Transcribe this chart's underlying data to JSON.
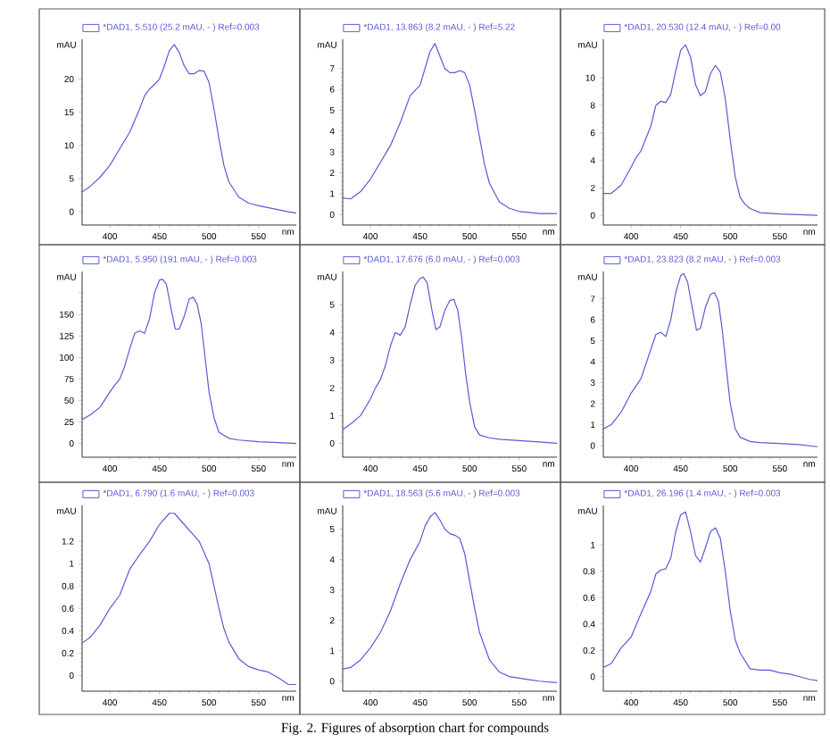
{
  "chart_data": [
    {
      "type": "line",
      "xlabel": "nm",
      "ylabel": "mAU",
      "legend": "top left",
      "xlim": [
        372,
        588
      ],
      "ylim": [
        -2,
        26
      ],
      "xticks": [
        400,
        450,
        500,
        550
      ],
      "yticks": [
        0,
        5,
        10,
        15,
        20
      ],
      "x": [
        372,
        380,
        390,
        400,
        410,
        420,
        430,
        435,
        440,
        445,
        450,
        455,
        460,
        465,
        470,
        475,
        480,
        485,
        490,
        495,
        500,
        505,
        510,
        515,
        520,
        530,
        540,
        550,
        560,
        570,
        580,
        588
      ],
      "series": [
        {
          "name": "*DAD1, 5.510 (25.2 mAU, - ) Ref=0.003",
          "color": "#5a5ad6",
          "values": [
            3.0,
            3.8,
            5.2,
            7.0,
            9.5,
            12.0,
            15.5,
            17.5,
            18.5,
            19.2,
            20.0,
            22.0,
            24.3,
            25.2,
            24.0,
            22.0,
            20.8,
            20.8,
            21.3,
            21.2,
            19.5,
            15.5,
            11,
            7,
            4.5,
            2.2,
            1.3,
            0.9,
            0.6,
            0.3,
            0.0,
            -0.2
          ]
        }
      ]
    },
    {
      "type": "line",
      "xlabel": "nm",
      "ylabel": "mAU",
      "legend": "top left",
      "xlim": [
        372,
        588
      ],
      "ylim": [
        -0.5,
        8.4
      ],
      "xticks": [
        400,
        450,
        500,
        550
      ],
      "yticks": [
        0,
        1,
        2,
        3,
        4,
        5,
        6,
        7
      ],
      "x": [
        372,
        380,
        390,
        400,
        410,
        420,
        430,
        440,
        450,
        455,
        460,
        465,
        470,
        475,
        480,
        485,
        490,
        495,
        500,
        505,
        510,
        515,
        520,
        530,
        540,
        550,
        560,
        570,
        588
      ],
      "series": [
        {
          "name": "*DAD1, 13.863 (8.2 mAU, - ) Ref=5.22",
          "color": "#5a5ad6",
          "values": [
            0.8,
            0.75,
            1.1,
            1.7,
            2.5,
            3.3,
            4.4,
            5.7,
            6.2,
            7.0,
            7.8,
            8.2,
            7.6,
            7.0,
            6.8,
            6.8,
            6.9,
            6.8,
            6.2,
            5.0,
            3.7,
            2.4,
            1.5,
            0.6,
            0.3,
            0.15,
            0.1,
            0.05,
            0.05
          ]
        }
      ]
    },
    {
      "type": "line",
      "xlabel": "nm",
      "ylabel": "mAU",
      "legend": "top left",
      "xlim": [
        372,
        588
      ],
      "ylim": [
        -0.7,
        12.8
      ],
      "xticks": [
        400,
        450,
        500,
        550
      ],
      "yticks": [
        0,
        2,
        4,
        6,
        8,
        10
      ],
      "x": [
        372,
        380,
        390,
        400,
        405,
        410,
        420,
        425,
        430,
        435,
        440,
        445,
        450,
        455,
        460,
        465,
        470,
        475,
        480,
        485,
        490,
        495,
        500,
        505,
        510,
        515,
        520,
        530,
        550,
        570,
        588
      ],
      "series": [
        {
          "name": "*DAD1, 20.530 (12.4 mAU, - ) Ref=0.00",
          "color": "#5a5ad6",
          "values": [
            1.6,
            1.6,
            2.2,
            3.5,
            4.2,
            4.7,
            6.5,
            8.0,
            8.3,
            8.2,
            8.8,
            10.5,
            12.0,
            12.4,
            11.5,
            9.5,
            8.7,
            9.0,
            10.3,
            10.9,
            10.4,
            8.5,
            5.5,
            2.8,
            1.3,
            0.8,
            0.5,
            0.2,
            0.1,
            0.05,
            0.0
          ]
        }
      ]
    },
    {
      "type": "line",
      "xlabel": "nm",
      "ylabel": "mAU",
      "legend": "top left",
      "xlim": [
        372,
        588
      ],
      "ylim": [
        -16,
        200
      ],
      "xticks": [
        400,
        450,
        500,
        550
      ],
      "yticks": [
        0,
        25,
        50,
        75,
        100,
        125,
        150,
        {
          "value": 175,
          "label": null
        }
      ],
      "x": [
        372,
        380,
        390,
        400,
        405,
        410,
        415,
        420,
        425,
        430,
        435,
        440,
        445,
        450,
        453,
        457,
        462,
        466,
        470,
        475,
        480,
        484,
        488,
        492,
        496,
        500,
        505,
        510,
        520,
        530,
        550,
        570,
        588
      ],
      "series": [
        {
          "name": "*DAD1, 5.950 (191 mAU, - ) Ref=0.003",
          "color": "#5a5ad6",
          "values": [
            28,
            33,
            42,
            60,
            68,
            75,
            90,
            110,
            128,
            131,
            128,
            145,
            175,
            190,
            191,
            185,
            155,
            133,
            133,
            148,
            168,
            170,
            162,
            140,
            100,
            60,
            30,
            13,
            6,
            4,
            2,
            1,
            0
          ]
        }
      ]
    },
    {
      "type": "line",
      "xlabel": "nm",
      "ylabel": "mAU",
      "legend": "top left",
      "xlim": [
        372,
        588
      ],
      "ylim": [
        -0.5,
        6.2
      ],
      "xticks": [
        400,
        450,
        500,
        550
      ],
      "yticks": [
        0,
        1,
        2,
        3,
        4,
        5
      ],
      "x": [
        372,
        380,
        390,
        400,
        405,
        410,
        415,
        420,
        425,
        430,
        435,
        440,
        445,
        450,
        453,
        457,
        462,
        466,
        470,
        475,
        480,
        484,
        488,
        492,
        496,
        500,
        505,
        510,
        520,
        530,
        550,
        570,
        588
      ],
      "series": [
        {
          "name": "*DAD1, 17.676 (6.0 mAU, - ) Ref=0.003",
          "color": "#5a5ad6",
          "values": [
            0.5,
            0.7,
            1.0,
            1.6,
            2.0,
            2.3,
            2.8,
            3.5,
            4.0,
            3.9,
            4.2,
            5.0,
            5.7,
            5.95,
            6.0,
            5.8,
            4.8,
            4.1,
            4.2,
            4.8,
            5.15,
            5.2,
            4.8,
            3.8,
            2.5,
            1.5,
            0.6,
            0.3,
            0.2,
            0.15,
            0.1,
            0.05,
            0.0
          ]
        }
      ]
    },
    {
      "type": "line",
      "xlabel": "nm",
      "ylabel": "mAU",
      "legend": "top left",
      "xlim": [
        372,
        588
      ],
      "ylim": [
        -0.55,
        8.3
      ],
      "xticks": [
        400,
        450,
        500,
        550
      ],
      "yticks": [
        0,
        1,
        2,
        3,
        4,
        5,
        6,
        7
      ],
      "x": [
        372,
        380,
        390,
        400,
        410,
        420,
        425,
        430,
        435,
        440,
        445,
        450,
        453,
        457,
        462,
        466,
        470,
        475,
        480,
        484,
        488,
        492,
        496,
        500,
        505,
        510,
        520,
        530,
        550,
        570,
        588
      ],
      "series": [
        {
          "name": "*DAD1, 23.823 (8.2 mAU, - ) Ref=0.003",
          "color": "#5a5ad6",
          "values": [
            0.8,
            1.0,
            1.6,
            2.5,
            3.2,
            4.6,
            5.3,
            5.4,
            5.2,
            6.0,
            7.3,
            8.1,
            8.2,
            7.8,
            6.5,
            5.5,
            5.6,
            6.6,
            7.2,
            7.3,
            6.9,
            5.5,
            3.7,
            2.0,
            0.8,
            0.4,
            0.2,
            0.15,
            0.1,
            0.05,
            -0.05
          ]
        }
      ]
    },
    {
      "type": "line",
      "xlabel": "nm",
      "ylabel": "mAU",
      "legend": "top left",
      "xlim": [
        372,
        588
      ],
      "ylim": [
        -0.14,
        1.52
      ],
      "xticks": [
        400,
        450,
        500,
        550
      ],
      "yticks": [
        0,
        0.2,
        0.4,
        0.6,
        0.8,
        1,
        1.2
      ],
      "x": [
        372,
        380,
        390,
        400,
        410,
        420,
        430,
        440,
        450,
        460,
        465,
        470,
        480,
        490,
        500,
        505,
        510,
        515,
        520,
        530,
        540,
        550,
        560,
        570,
        580,
        588
      ],
      "series": [
        {
          "name": "*DAD1, 6.790 (1.6 mAU, - ) Ref=0.003",
          "color": "#5a5ad6",
          "values": [
            0.29,
            0.34,
            0.45,
            0.6,
            0.72,
            0.95,
            1.08,
            1.2,
            1.35,
            1.45,
            1.45,
            1.4,
            1.3,
            1.2,
            1.0,
            0.8,
            0.6,
            0.42,
            0.3,
            0.15,
            0.08,
            0.05,
            0.03,
            -0.02,
            -0.08,
            -0.08
          ]
        }
      ]
    },
    {
      "type": "line",
      "xlabel": "nm",
      "ylabel": "mAU",
      "legend": "top left",
      "xlim": [
        372,
        588
      ],
      "ylim": [
        -0.33,
        5.78
      ],
      "xticks": [
        400,
        450,
        500,
        550
      ],
      "yticks": [
        0,
        1,
        2,
        3,
        4,
        5
      ],
      "annotations": [
        "Fig. 2. Figures of absorption chart for compounds"
      ],
      "x": [
        372,
        380,
        390,
        400,
        410,
        420,
        430,
        440,
        450,
        455,
        460,
        465,
        470,
        475,
        480,
        485,
        490,
        495,
        500,
        505,
        510,
        520,
        530,
        540,
        550,
        560,
        570,
        588
      ],
      "series": [
        {
          "name": "*DAD1, 18.563 (5.6 mAU, - ) Ref=0.003",
          "color": "#5a5ad6",
          "values": [
            0.4,
            0.45,
            0.7,
            1.1,
            1.6,
            2.3,
            3.2,
            4.0,
            4.6,
            5.1,
            5.4,
            5.55,
            5.3,
            5.0,
            4.85,
            4.8,
            4.7,
            4.2,
            3.3,
            2.4,
            1.6,
            0.7,
            0.3,
            0.15,
            0.1,
            0.05,
            0.0,
            -0.05
          ]
        }
      ]
    },
    {
      "type": "line",
      "xlabel": "nm",
      "ylabel": "mAU",
      "legend": "top left",
      "xlim": [
        372,
        588
      ],
      "ylim": [
        -0.11,
        1.3
      ],
      "xticks": [
        400,
        450,
        500,
        550
      ],
      "yticks": [
        0,
        0.2,
        0.4,
        0.6,
        0.8,
        1
      ],
      "x": [
        372,
        380,
        390,
        400,
        410,
        420,
        425,
        430,
        435,
        440,
        445,
        450,
        455,
        460,
        465,
        470,
        475,
        480,
        485,
        490,
        495,
        500,
        505,
        510,
        520,
        530,
        540,
        550,
        560,
        570,
        580,
        588
      ],
      "series": [
        {
          "name": "*DAD1, 26.196 (1.4 mAU, - ) Ref=0.003",
          "color": "#5a5ad6",
          "values": [
            0.07,
            0.1,
            0.22,
            0.3,
            0.48,
            0.65,
            0.78,
            0.81,
            0.82,
            0.9,
            1.1,
            1.23,
            1.25,
            1.1,
            0.92,
            0.87,
            0.98,
            1.1,
            1.13,
            1.05,
            0.8,
            0.5,
            0.28,
            0.18,
            0.06,
            0.05,
            0.05,
            0.03,
            0.02,
            0.0,
            -0.02,
            -0.03
          ]
        }
      ]
    }
  ]
}
